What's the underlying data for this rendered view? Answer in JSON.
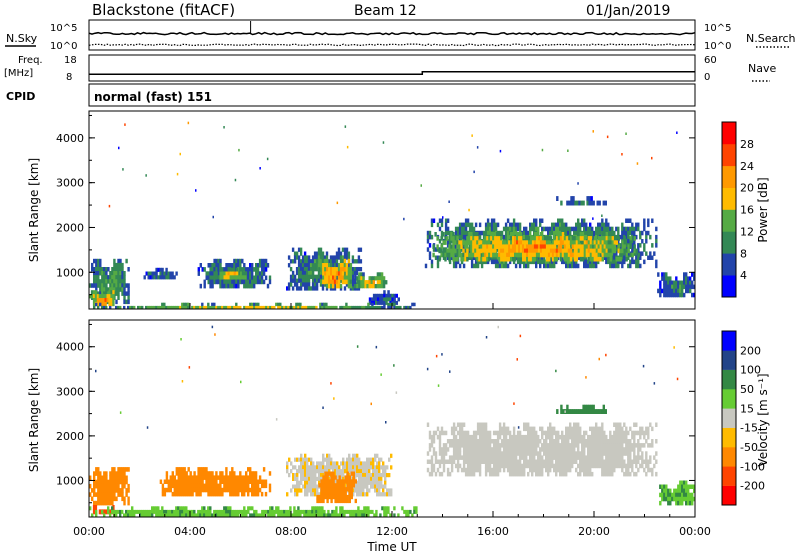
{
  "header": {
    "station": "Blackstone (fitACF)",
    "beam": "Beam 12",
    "date": "01/Jan/2019"
  },
  "summary": {
    "nsky_label": "N.Sky",
    "nsearch_label": "N.Search",
    "noise_tick_hi": "10^5",
    "noise_tick_lo": "10^0",
    "freq_label": "Freq.",
    "freq_unit": "[MHz]",
    "freq_ticks": [
      "18",
      "8"
    ],
    "nave_label": "Nave",
    "nave_ticks": [
      "60",
      "0"
    ],
    "cpid_label": "CPID",
    "cpid_text": "normal (fast) 151",
    "nsky_level": 0.55,
    "nsearch_level": 0.15,
    "freq_mhz": [
      {
        "t": 0.0,
        "v": 10.4
      },
      {
        "t": 13.2,
        "v": 10.4
      },
      {
        "t": 13.2,
        "v": 11.4
      },
      {
        "t": 24.0,
        "v": 11.4
      }
    ]
  },
  "power_panel": {
    "ylabel": "Slant Range [km]",
    "yticks": [
      "4000",
      "3000",
      "2000",
      "1000"
    ],
    "colorbar_label": "Power [dB]",
    "colorbar_ticks": [
      "28",
      "24",
      "20",
      "16",
      "12",
      "8",
      "4"
    ]
  },
  "velocity_panel": {
    "ylabel": "Slant Range [km]",
    "yticks": [
      "4000",
      "3000",
      "2000",
      "1000"
    ],
    "colorbar_label": "Velocity [m s⁻¹]",
    "colorbar_ticks": [
      "200",
      "100",
      "50",
      "15",
      "-15",
      "-50",
      "-100",
      "-200"
    ]
  },
  "xaxis": {
    "label": "Time UT",
    "ticks": [
      "00:00",
      "04:00",
      "08:00",
      "12:00",
      "16:00",
      "20:00",
      "00:00"
    ]
  },
  "colors": {
    "power_scale": [
      "#0000ff",
      "#2244aa",
      "#338855",
      "#55aa44",
      "#ffbb00",
      "#ff9900",
      "#ff4400",
      "#ff0000"
    ],
    "velocity_scale": [
      "#0000ff",
      "#224488",
      "#338844",
      "#66cc33",
      "#c8c8c0",
      "#ffbb00",
      "#ff8800",
      "#ff4400",
      "#ff0000"
    ],
    "ground_scatter": "#bdbdb3"
  },
  "chart_data": {
    "type": "heatmap",
    "x_units": "hours UT",
    "y_units": "km",
    "xlim": [
      0,
      24
    ],
    "ylim": [
      180,
      4600
    ],
    "power_patches": [
      {
        "t0": 0.0,
        "t1": 1.6,
        "r0": 300,
        "r1": 1300,
        "p": 14
      },
      {
        "t0": 0.0,
        "t1": 1.0,
        "r0": 250,
        "r1": 600,
        "p": 26
      },
      {
        "t0": 2.0,
        "t1": 3.5,
        "r0": 850,
        "r1": 1100,
        "p": 9
      },
      {
        "t0": 4.3,
        "t1": 7.2,
        "r0": 650,
        "r1": 1300,
        "p": 12
      },
      {
        "t0": 5.0,
        "t1": 6.3,
        "r0": 850,
        "r1": 1100,
        "p": 21
      },
      {
        "t0": 7.8,
        "t1": 10.8,
        "r0": 600,
        "r1": 1550,
        "p": 13
      },
      {
        "t0": 9.0,
        "t1": 10.4,
        "r0": 650,
        "r1": 1300,
        "p": 26
      },
      {
        "t0": 10.5,
        "t1": 11.8,
        "r0": 650,
        "r1": 1000,
        "p": 20
      },
      {
        "t0": 11.0,
        "t1": 12.3,
        "r0": 280,
        "r1": 600,
        "p": 8
      },
      {
        "t0": 13.3,
        "t1": 22.5,
        "r0": 1100,
        "r1": 2200,
        "p": 14
      },
      {
        "t0": 13.6,
        "t1": 21.8,
        "r0": 1250,
        "r1": 1900,
        "p": 24
      },
      {
        "t0": 18.5,
        "t1": 20.5,
        "r0": 2500,
        "r1": 2700,
        "p": 10
      },
      {
        "t0": 22.5,
        "t1": 24.0,
        "r0": 450,
        "r1": 1000,
        "p": 11
      },
      {
        "t0": 0.0,
        "t1": 13.0,
        "r0": 180,
        "r1": 320,
        "p": 18
      }
    ],
    "velocity_patches": [
      {
        "t0": 0.0,
        "t1": 1.6,
        "r0": 450,
        "r1": 1300,
        "v": -60
      },
      {
        "t0": 0.0,
        "t1": 1.0,
        "r0": 250,
        "r1": 450,
        "v": -110
      },
      {
        "t0": 2.8,
        "t1": 7.2,
        "r0": 650,
        "r1": 1300,
        "v": -55
      },
      {
        "t0": 7.8,
        "t1": 12.0,
        "r0": 650,
        "r1": 1600,
        "v": -10
      },
      {
        "t0": 9.0,
        "t1": 10.6,
        "r0": 500,
        "r1": 1200,
        "v": -60
      },
      {
        "t0": 13.3,
        "t1": 22.5,
        "r0": 1100,
        "r1": 2300,
        "v": 0
      },
      {
        "t0": 18.5,
        "t1": 20.5,
        "r0": 2500,
        "r1": 2700,
        "v": 60
      },
      {
        "t0": 22.5,
        "t1": 24.0,
        "r0": 450,
        "r1": 1000,
        "v": 30
      },
      {
        "t0": 0.0,
        "t1": 13.0,
        "r0": 180,
        "r1": 420,
        "v": 25
      }
    ]
  }
}
